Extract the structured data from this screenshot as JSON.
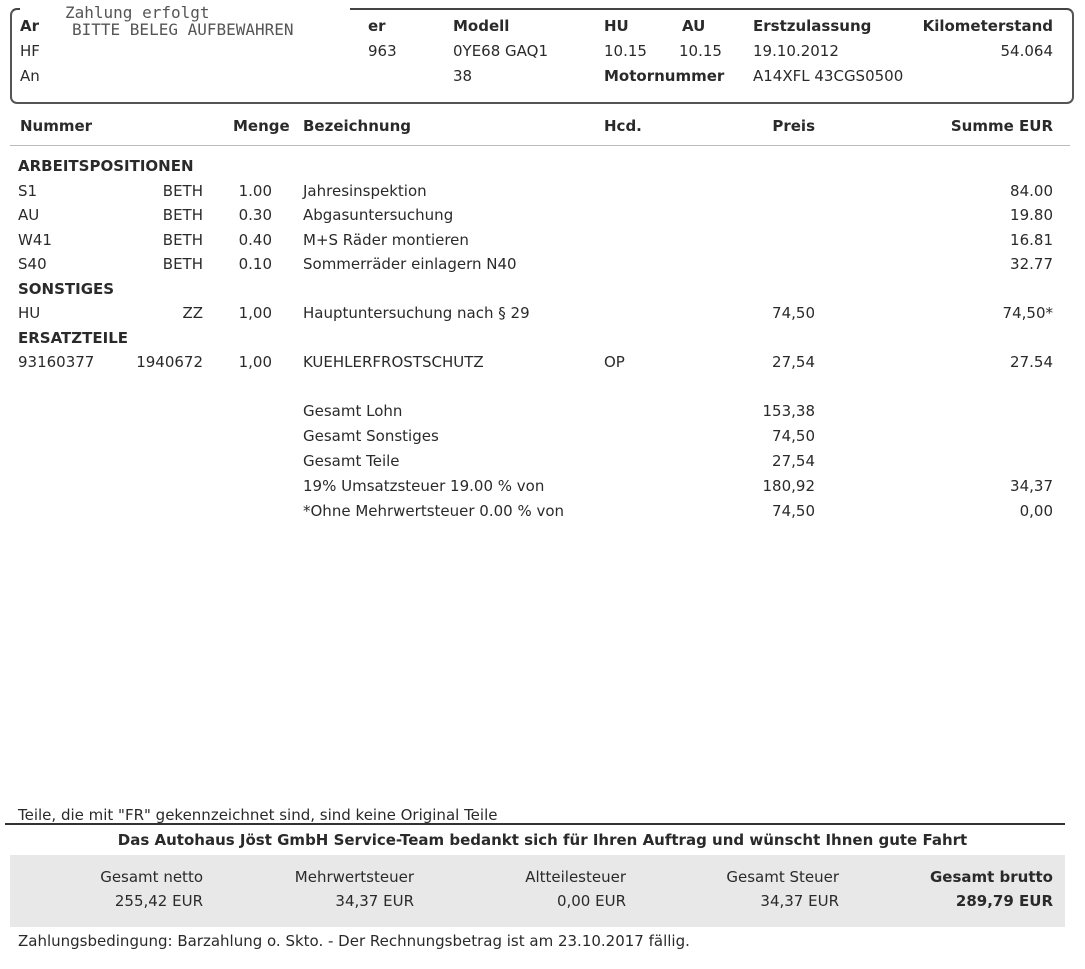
{
  "stamp": {
    "line1": "Zahlung erfolgt",
    "line2": "BITTE BELEG AUFBEWAHREN"
  },
  "header": {
    "col1": [
      "Ar",
      "HF",
      "An"
    ],
    "col2": [
      "er",
      "963",
      ""
    ],
    "modell_label": "Modell",
    "modell": "0YE68  GAQ1",
    "modell_row3": "38",
    "hu_label": "HU",
    "hu": "10.15",
    "au_label": "AU",
    "au": "10.15",
    "motornummer_label": "Motornummer",
    "erstzulassung_label": "Erstzulassung",
    "erstzulassung": "19.10.2012",
    "motornummer": "A14XFL 43CGS0500",
    "km_label": "Kilometerstand",
    "km": "54.064"
  },
  "columns": {
    "nummer": "Nummer",
    "menge": "Menge",
    "bezeichnung": "Bezeichnung",
    "hcd": "Hcd.",
    "preis": "Preis",
    "summe": "Summe EUR"
  },
  "sections": [
    {
      "title": "ARBEITSPOSITIONEN",
      "items": [
        {
          "nr": "S1",
          "code": "BETH",
          "menge": "1.00",
          "bez": "Jahresinspektion",
          "hcd": "",
          "preis": "",
          "summe": "84.00"
        },
        {
          "nr": "AU",
          "code": "BETH",
          "menge": "0.30",
          "bez": "Abgasuntersuchung",
          "hcd": "",
          "preis": "",
          "summe": "19.80"
        },
        {
          "nr": "W41",
          "code": "BETH",
          "menge": "0.40",
          "bez": "M+S Räder montieren",
          "hcd": "",
          "preis": "",
          "summe": "16.81"
        },
        {
          "nr": "S40",
          "code": "BETH",
          "menge": "0.10",
          "bez": "Sommerräder einlagern  N40",
          "hcd": "",
          "preis": "",
          "summe": "32.77"
        }
      ]
    },
    {
      "title": "SONSTIGES",
      "items": [
        {
          "nr": "HU",
          "code": "ZZ",
          "menge": "1,00",
          "bez": "Hauptuntersuchung nach § 29",
          "hcd": "",
          "preis": "74,50",
          "summe": "74,50*"
        }
      ]
    },
    {
      "title": "ERSATZTEILE",
      "items": [
        {
          "nr": "93160377",
          "code": "1940672",
          "menge": "1,00",
          "bez": "KUEHLERFROSTSCHUTZ",
          "hcd": "OP",
          "preis": "27,54",
          "summe": "27.54"
        }
      ]
    }
  ],
  "totals": [
    {
      "label": "Gesamt Lohn",
      "preis": "153,38",
      "summe": ""
    },
    {
      "label": "Gesamt Sonstiges",
      "preis": "74,50",
      "summe": ""
    },
    {
      "label": "Gesamt Teile",
      "preis": "27,54",
      "summe": ""
    },
    {
      "label": "19% Umsatzsteuer 19.00 % von",
      "preis": "180,92",
      "summe": "34,37"
    },
    {
      "label": "*Ohne Mehrwertsteuer 0.00 % von",
      "preis": "74,50",
      "summe": "0,00"
    }
  ],
  "footer": {
    "note": "Teile, die mit \"FR\" gekennzeichnet sind, sind keine Original Teile",
    "thanks": "Das Autohaus Jöst GmbH Service-Team bedankt sich für Ihren Auftrag und wünscht Ihnen gute Fahrt",
    "summary": [
      {
        "label": "Gesamt netto",
        "value": "255,42 EUR"
      },
      {
        "label": "Mehrwertsteuer",
        "value": "34,37 EUR"
      },
      {
        "label": "Altteilesteuer",
        "value": "0,00 EUR"
      },
      {
        "label": "Gesamt Steuer",
        "value": "34,37 EUR"
      },
      {
        "label": "Gesamt brutto",
        "value": "289,79 EUR"
      }
    ],
    "terms": "Zahlungsbedingung: Barzahlung o. Skto. - Der Rechnungsbetrag ist am 23.10.2017 fällig."
  }
}
